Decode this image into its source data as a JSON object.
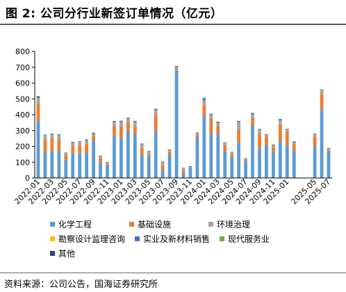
{
  "figure": {
    "title": "图 2:  公司分行业新签订单情况（亿元）",
    "source": "资料来源：公司公告，国海证券研究所"
  },
  "chart_data": {
    "type": "bar",
    "stacked": true,
    "title": "",
    "xlabel": "",
    "ylabel": "",
    "ylim": [
      0,
      800
    ],
    "yticks": [
      0,
      100,
      200,
      300,
      400,
      500,
      600,
      700,
      800
    ],
    "grid": false,
    "legend_position": "bottom",
    "categories": [
      "2022-01",
      "2022-02",
      "2022-03",
      "2022-04",
      "2022-05",
      "2022-06",
      "2022-07",
      "2022-08",
      "2022-09",
      "2022-10",
      "2022-11",
      "2022-12",
      "2023-01",
      "2023-02",
      "2023-03",
      "2023-04",
      "2023-05",
      "2023-06",
      "2023-07",
      "2023-08",
      "2023-09",
      "2023-10",
      "2023-11",
      "2023-12",
      "2024-01",
      "2024-02",
      "2024-03",
      "2024-04",
      "2024-05",
      "2024-06",
      "2024-07",
      "2024-08",
      "2024-09",
      "2024-10",
      "2024-11",
      "2024-12",
      "2025-01",
      "2025-02",
      "2025-03",
      "2025-04",
      "2025-05",
      "2025-06",
      "2025-07"
    ],
    "tick_labels": [
      "2022-01",
      "2022-03",
      "2022-05",
      "2022-07",
      "2022-09",
      "2022-11",
      "2023-01",
      "2023-03",
      "2023-05",
      "2023-07",
      "2023-09",
      "2023-11",
      "2024-01",
      "2024-03",
      "2024-05",
      "2024-07",
      "2024-09",
      "2024-11",
      "2025-01",
      "2025-05",
      "2025-07"
    ],
    "series": [
      {
        "name": "化学工程",
        "color": "#5b9bd5",
        "values": [
          360,
          165,
          170,
          170,
          115,
          155,
          155,
          160,
          235,
          100,
          80,
          265,
          250,
          300,
          280,
          145,
          140,
          295,
          50,
          145,
          680,
          30,
          70,
          255,
          395,
          280,
          280,
          170,
          135,
          225,
          105,
          330,
          190,
          210,
          165,
          230,
          205,
          175,
          0,
          0,
          200,
          430,
          170
        ]
      },
      {
        "name": "基础设施",
        "color": "#ed7d31",
        "values": [
          110,
          75,
          80,
          70,
          30,
          50,
          50,
          55,
          30,
          25,
          10,
          60,
          75,
          55,
          45,
          45,
          15,
          100,
          30,
          20,
          10,
          15,
          0,
          15,
          70,
          95,
          50,
          35,
          15,
          80,
          10,
          50,
          90,
          45,
          30,
          110,
          90,
          40,
          0,
          0,
          60,
          100,
          10
        ]
      },
      {
        "name": "环境治理",
        "color": "#a5a5a5",
        "values": [
          30,
          25,
          20,
          25,
          10,
          15,
          20,
          20,
          10,
          10,
          5,
          25,
          25,
          15,
          25,
          20,
          10,
          30,
          20,
          10,
          5,
          15,
          0,
          10,
          25,
          20,
          15,
          15,
          10,
          45,
          5,
          20,
          20,
          15,
          10,
          20,
          5,
          10,
          0,
          0,
          10,
          20,
          5
        ]
      },
      {
        "name": "勘察设计监理咨询",
        "color": "#ffc000",
        "values": [
          3,
          2,
          2,
          2,
          1,
          2,
          2,
          2,
          2,
          1,
          1,
          2,
          2,
          2,
          2,
          1,
          1,
          2,
          1,
          1,
          2,
          1,
          1,
          1,
          2,
          2,
          2,
          1,
          1,
          2,
          1,
          1,
          2,
          1,
          1,
          2,
          2,
          1,
          0,
          0,
          2,
          2,
          1
        ]
      },
      {
        "name": "实业及新材料销售",
        "color": "#4472c4",
        "values": [
          7,
          3,
          3,
          4,
          2,
          3,
          3,
          3,
          4,
          2,
          2,
          4,
          5,
          4,
          4,
          3,
          2,
          6,
          1,
          2,
          5,
          1,
          1,
          3,
          8,
          5,
          5,
          2,
          2,
          4,
          1,
          6,
          4,
          3,
          3,
          6,
          4,
          3,
          0,
          0,
          4,
          3,
          2
        ]
      },
      {
        "name": "现代服务业",
        "color": "#70ad47",
        "values": [
          5,
          2,
          3,
          3,
          1,
          2,
          2,
          2,
          3,
          1,
          1,
          3,
          3,
          3,
          3,
          2,
          2,
          3,
          1,
          1,
          3,
          1,
          1,
          2,
          4,
          2,
          2,
          1,
          1,
          3,
          1,
          2,
          2,
          2,
          1,
          3,
          2,
          2,
          0,
          0,
          2,
          3,
          1
        ]
      },
      {
        "name": "其他",
        "color": "#264478",
        "values": [
          3,
          2,
          2,
          2,
          1,
          1,
          1,
          1,
          2,
          1,
          1,
          2,
          2,
          2,
          2,
          1,
          1,
          2,
          1,
          1,
          2,
          1,
          1,
          1,
          3,
          2,
          2,
          1,
          1,
          2,
          1,
          2,
          2,
          1,
          1,
          2,
          2,
          1,
          0,
          0,
          2,
          2,
          1
        ]
      }
    ]
  }
}
